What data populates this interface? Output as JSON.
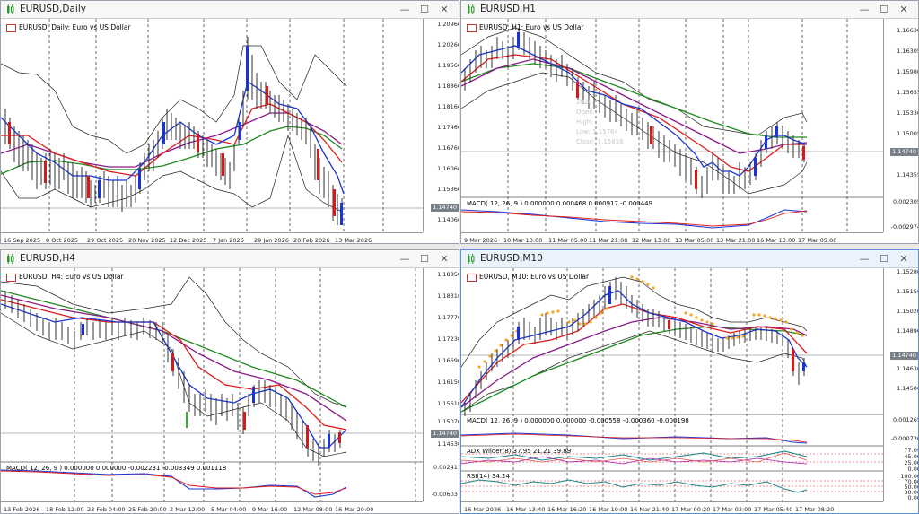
{
  "windows": [
    {
      "title": "EURUSD,Daily",
      "chart_label": "EURUSD, Daily:  Euro vs US Dollar",
      "prices": [
        "1.20960",
        "1.20260",
        "1.19560",
        "1.18860",
        "1.18160",
        "1.17460",
        "1.16760",
        "1.16060",
        "1.15360",
        "1.14740",
        "1.14060"
      ],
      "current_price": "1.14740",
      "xlabels": [
        "16 Sep 2025",
        "8 Oct 2025",
        "29 Oct 2025",
        "20 Nov 2025",
        "12 Dec 2025",
        "7 Jan 2026",
        "29 Jan 2026",
        "20 Feb 2026",
        "13 Mar 2026"
      ],
      "minimize": "—",
      "maximize": "☐",
      "close": "✕"
    },
    {
      "title": "EURUSD,H1",
      "chart_label": "EURUSD, H1:  Euro vs US Dollar",
      "prices": [
        "1.16630",
        "1.16305",
        "1.15980",
        "1.15655",
        "1.15330",
        "1.15005",
        "1.14740",
        "1.14355"
      ],
      "current_price": "1.14740",
      "tooltip": [
        "2026.",
        "Open:",
        "High:",
        "Low:  1.15764",
        "Close: 1.15816"
      ],
      "macd_label": "MACD( 12, 26, 9 ) 0.000000 0.000468 0.000917 -0.000449",
      "macd_scale": [
        "0.002305",
        "-0.002974"
      ],
      "xlabels": [
        "9 Mar 2026",
        "10 Mar 13:00",
        "11 Mar 05:00",
        "11 Mar 21:00",
        "12 Mar 13:00",
        "13 Mar 05:00",
        "13 Mar 21:00",
        "16 Mar 13:00",
        "17 Mar 05:00"
      ],
      "minimize": "—",
      "maximize": "☐",
      "close": "✕"
    },
    {
      "title": "EURUSD,H4",
      "chart_label": "EURUSD, H4:  Euro vs US Dollar",
      "prices": [
        "1.18850",
        "1.18310",
        "1.17770",
        "1.17230",
        "1.16690",
        "1.16150",
        "1.15610",
        "1.15070",
        "1.14740",
        "1.14530"
      ],
      "current_price": "1.14740",
      "macd_label": "MACD( 12, 26, 9 ) 0.000000 0.000000 -0.002231 -0.003349 0.001118",
      "macd_scale": [
        "0.002411",
        "-0.006037"
      ],
      "xlabels": [
        "13 Feb 2026",
        "18 Feb 12:00",
        "23 Feb 04:00",
        "25 Feb 20:00",
        "2 Mar 12:00",
        "5 Mar 04:00",
        "9 Mar 16:00",
        "12 Mar 08:00",
        "16 Mar 20:00"
      ],
      "minimize": "—",
      "maximize": "☐",
      "close": "✕"
    },
    {
      "title": "EURUSD,M10",
      "chart_label": "EURUSD, M10:  Euro vs US Dollar",
      "prices": [
        "1.15280",
        "1.15150",
        "1.15020",
        "1.14890",
        "1.14740",
        "1.14630",
        "1.14500"
      ],
      "current_price": "1.14740",
      "macd_label": "MACD( 12, 26, 9 ) 0.000000 0.000000 -0.000558 -0.000360 -0.000198",
      "macd_scale": [
        "0.001265",
        "-0.000730"
      ],
      "adx_label": "ADX Wilder(8) 37.95 21.21 39.89",
      "adx_scale": [
        "77.09",
        "45.00",
        "25.00",
        "0.00"
      ],
      "rsi_label": "RSI(14) 34.24",
      "rsi_scale": [
        "100.00",
        "70.00",
        "50.00",
        "30.00",
        "0.00"
      ],
      "xlabels": [
        "16 Mar 2026",
        "16 Mar 13:40",
        "16 Mar 16:20",
        "16 Mar 19:00",
        "16 Mar 21:40",
        "17 Mar 00:20",
        "17 Mar 03:00",
        "17 Mar 05:40",
        "17 Mar 08:20"
      ],
      "minimize": "—",
      "maximize": "☐",
      "close": "✕"
    }
  ],
  "colors": {
    "bull": "#1a35d6",
    "bear": "#d61a1a",
    "ma_green": "#1f8a1f",
    "ma_purple": "#8a1a8a",
    "ma_red": "#e01a1a",
    "ma_blue": "#1a35d6",
    "sar": "#f5a623"
  }
}
